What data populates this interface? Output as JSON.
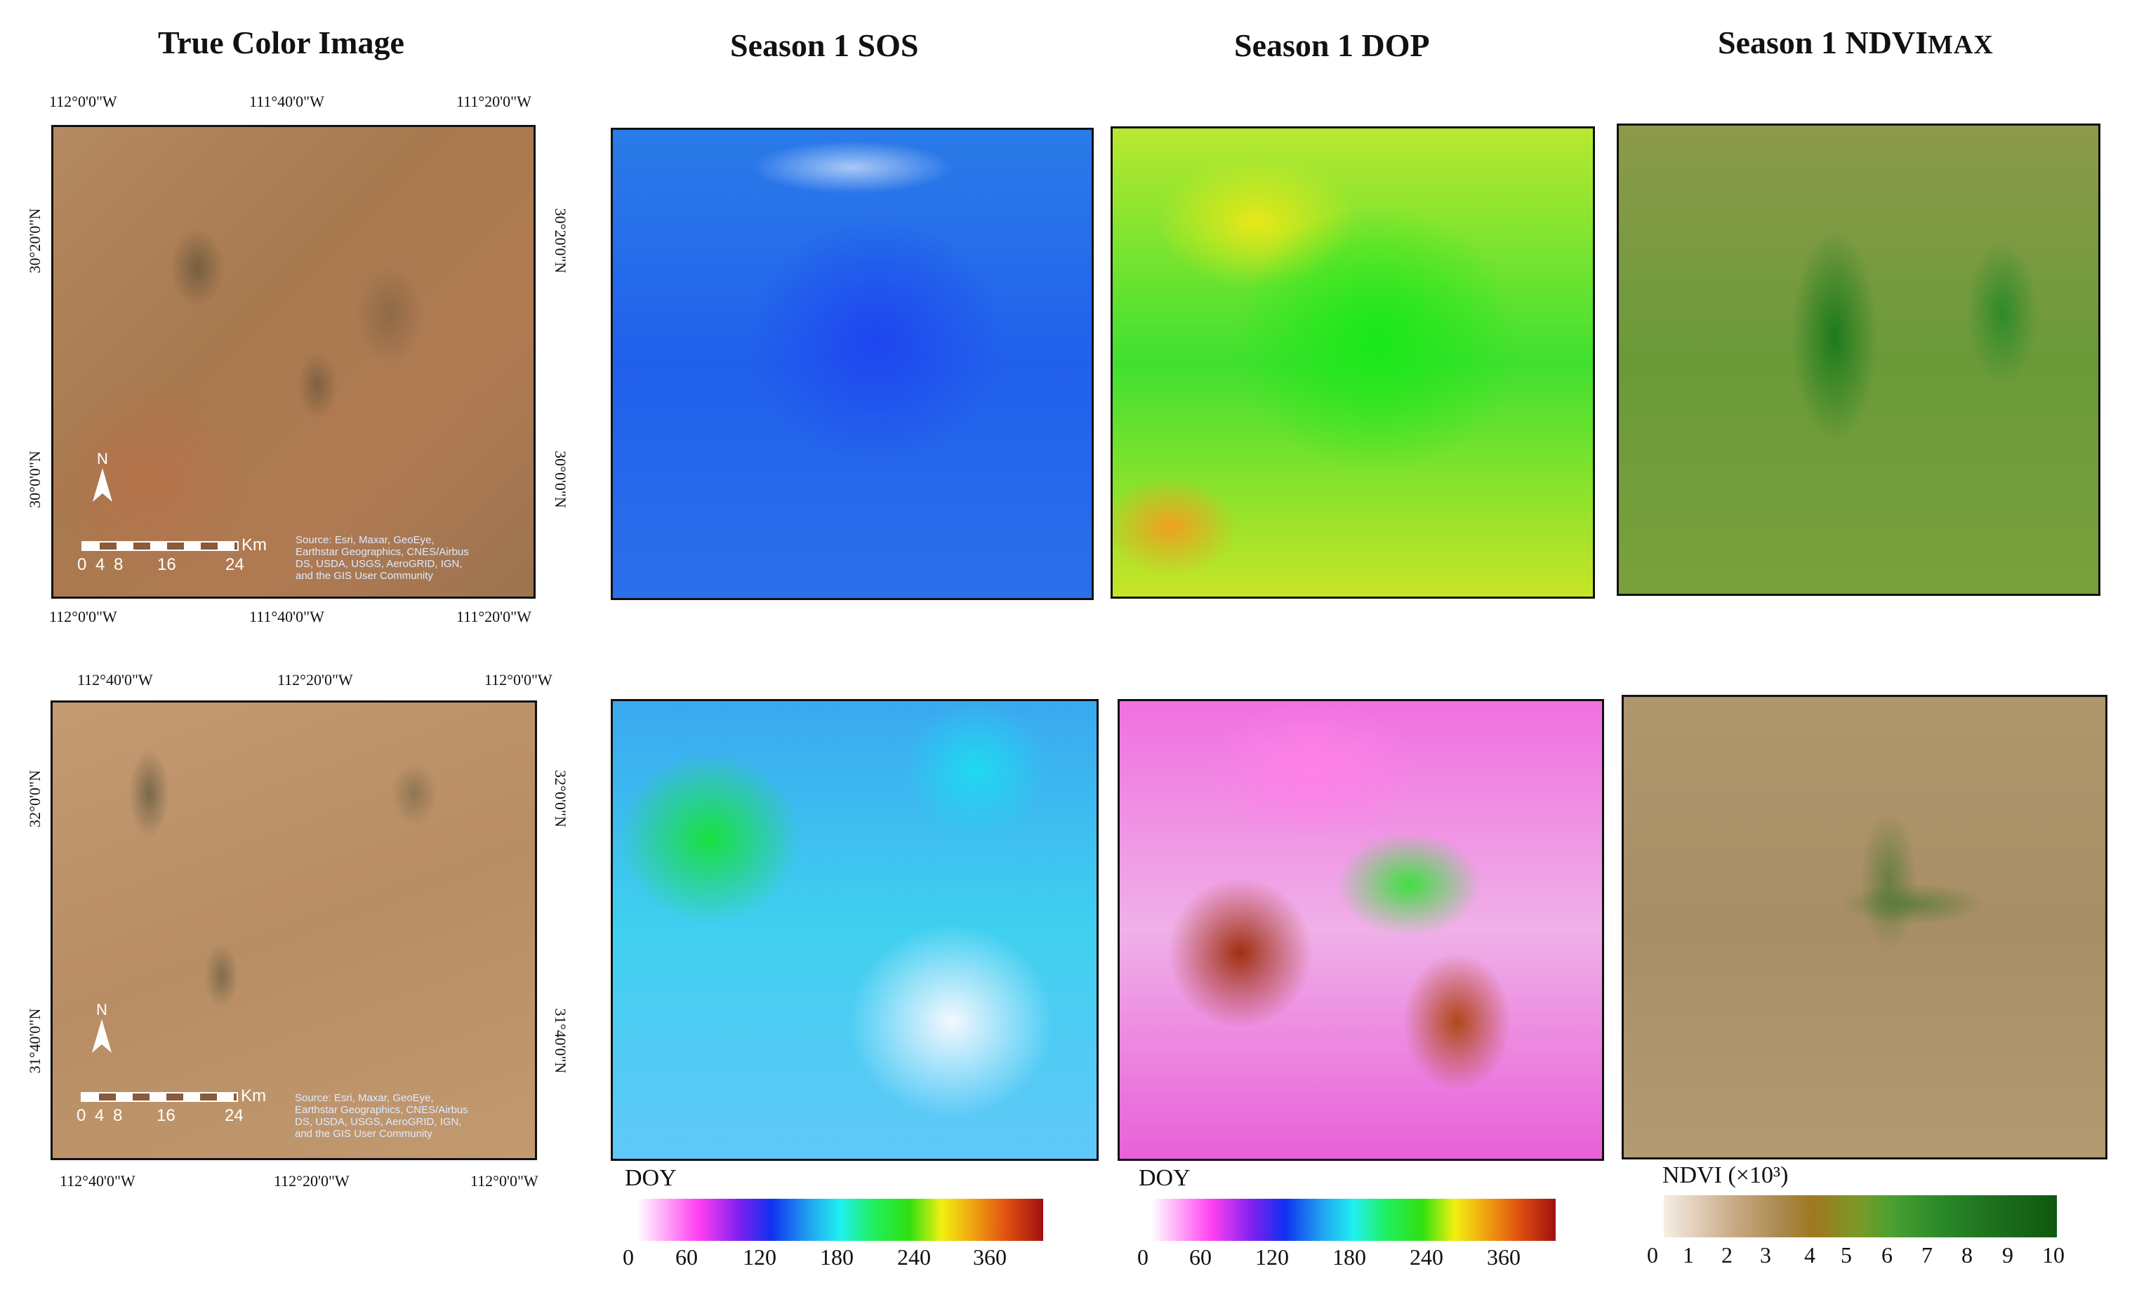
{
  "titles": {
    "true_color": "True Color Image",
    "sos": "Season 1 SOS",
    "dop": "Season 1 DOP",
    "ndvi_main": "Season 1 NDVI",
    "ndvi_sub": "MAX"
  },
  "row1": {
    "lon_labels": [
      "112°0'0\"W",
      "111°40'0\"W",
      "111°20'0\"W"
    ],
    "lat_labels": [
      "30°20'0\"N",
      "30°0'0\"N"
    ]
  },
  "row2": {
    "lon_labels": [
      "112°40'0\"W",
      "112°20'0\"W",
      "112°0'0\"W"
    ],
    "lat_labels": [
      "32°0'0\"N",
      "31°40'0\"N"
    ]
  },
  "map_elements": {
    "north": "N",
    "scale_unit": "Km",
    "scale_ticks": [
      "0",
      "4",
      "8",
      "16",
      "24"
    ],
    "source_lines": [
      "Source: Esri, Maxar, GeoEye,",
      "Earthstar Geographics, CNES/Airbus",
      "DS, USDA, USGS, AeroGRID, IGN,",
      "and the GIS User Community"
    ]
  },
  "legends": {
    "doy_title": "DOY",
    "doy_ticks": [
      "0",
      "60",
      "120",
      "180",
      "240",
      "360"
    ],
    "ndvi_title": "NDVI (×10³)",
    "ndvi_ticks": [
      "0",
      "1",
      "2",
      "3",
      "4",
      "5",
      "6",
      "7",
      "8",
      "9",
      "10"
    ],
    "colors": {
      "doy": [
        "#ffffff",
        "#ff40f0",
        "#8020f0",
        "#1030f0",
        "#20a0f0",
        "#20f0f0",
        "#20f060",
        "#30e010",
        "#f0f010",
        "#f0a010",
        "#e05010",
        "#a01010"
      ],
      "ndvi": [
        "#f6eee4",
        "#c9a985",
        "#a8884c",
        "#a07820",
        "#7a9a28",
        "#4aa030",
        "#2b8a2a",
        "#1c6e1c",
        "#105810"
      ]
    }
  }
}
